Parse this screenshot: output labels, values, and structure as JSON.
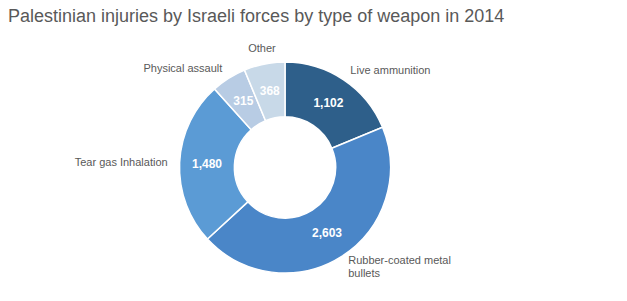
{
  "chart_data": {
    "type": "donut",
    "title": "Palestinian injuries by Israeli forces by type of weapon in 2014",
    "categories": [
      "Live ammunition",
      "Rubber-coated metal\nbullets",
      "Tear gas Inhalation",
      "Physical assault",
      "Other"
    ],
    "values": [
      1102,
      2603,
      1480,
      315,
      368
    ],
    "value_labels": [
      "1,102",
      "2,603",
      "1,480",
      "315",
      "368"
    ],
    "colors": [
      "#2e5f8a",
      "#4a86c8",
      "#5b9bd5",
      "#b8cce4",
      "#c8d9e8"
    ],
    "data_labels": true
  }
}
